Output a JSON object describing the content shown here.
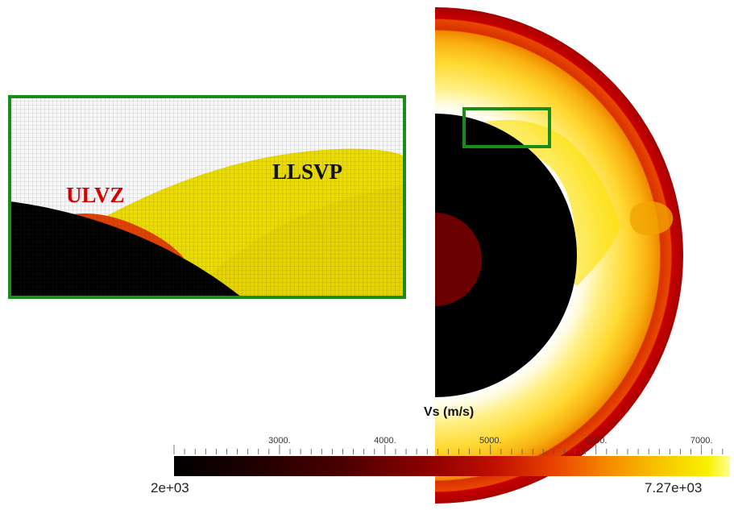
{
  "inset": {
    "ulvz_label": "ULVZ",
    "llsvp_label": "LLSVP",
    "frame_color": "#1a8c1a"
  },
  "colorbar": {
    "title": "Vs (m/s)",
    "min_label": "2e+03",
    "max_label": "7.27e+03",
    "min_value": 2000,
    "max_value": 7270,
    "major_ticks": [
      {
        "value": 3000,
        "label": "3000."
      },
      {
        "value": 4000,
        "label": "4000."
      },
      {
        "value": 5000,
        "label": "5000."
      },
      {
        "value": 6000,
        "label": "6000."
      },
      {
        "value": 7000,
        "label": "7000."
      }
    ],
    "colormap": [
      "#000000",
      "#3a0000",
      "#7a0000",
      "#b00000",
      "#e02000",
      "#f06a00",
      "#f8b000",
      "#f8e000",
      "#ffff80"
    ]
  },
  "colors": {
    "crust": "#c00000",
    "mantle_outer": "#f29a00",
    "mantle_inner": "#ffe800",
    "llsvp": "#e6d600",
    "ulvz": "#e04000",
    "outer_core": "#000000",
    "inner_core": "#6b0000"
  }
}
